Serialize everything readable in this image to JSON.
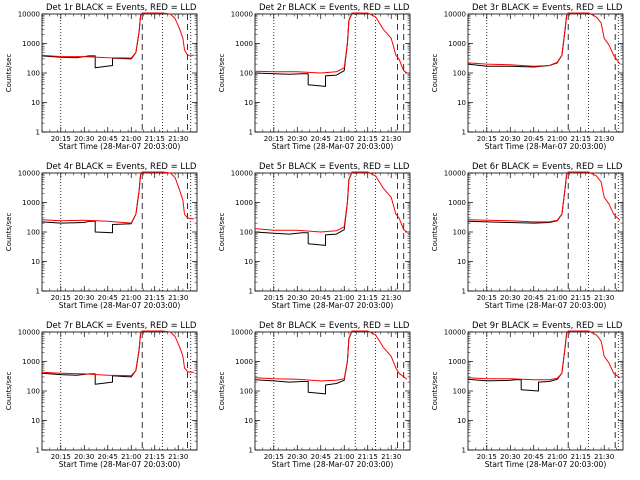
{
  "chart_data": [
    {
      "type": "line",
      "title": "Det 1r BLACK = Events, RED = LLD",
      "xlabel": "Start Time (28-Mar-07 20:03:00)",
      "ylabel": "Counts/sec",
      "xlim": [
        "20:03",
        "21:42"
      ],
      "ylim": [
        1,
        10000
      ],
      "yscale": "log",
      "yticks": [
        "1",
        "10",
        "100",
        "1000",
        "10000"
      ],
      "xticks": [
        "20:15",
        "20:30",
        "20:45",
        "21:00",
        "21:15",
        "21:30"
      ],
      "dotted_lines": [
        "20:15",
        "21:20",
        "21:38"
      ],
      "dashed_lines": [
        "21:07",
        "21:36"
      ],
      "legend": "none",
      "series": [
        {
          "color": "#000000",
          "x": [
            "20:03",
            "20:15",
            "20:25",
            "20:33",
            "20:37",
            "20:37",
            "20:48",
            "20:48",
            "21:00",
            "21:03",
            "21:05",
            "21:06",
            "21:07",
            "21:09"
          ],
          "y": [
            380,
            340,
            330,
            380,
            380,
            150,
            180,
            320,
            300,
            500,
            2500,
            9000,
            11000,
            11000
          ]
        },
        {
          "color": "#ff0000",
          "x": [
            "20:03",
            "20:15",
            "20:30",
            "20:45",
            "21:00",
            "21:03",
            "21:05",
            "21:06",
            "21:07",
            "21:20",
            "21:25",
            "21:28",
            "21:31",
            "21:33",
            "21:34",
            "21:36",
            "21:38",
            "21:40"
          ],
          "y": [
            400,
            360,
            360,
            330,
            320,
            500,
            2500,
            9000,
            11000,
            11000,
            10000,
            7000,
            3000,
            1500,
            600,
            400,
            400,
            400
          ]
        }
      ]
    },
    {
      "type": "line",
      "title": "Det 2r BLACK = Events, RED = LLD",
      "xlabel": "Start Time (28-Mar-07 20:03:00)",
      "ylabel": "Counts/sec",
      "xlim": [
        "20:03",
        "21:42"
      ],
      "ylim": [
        1,
        10000
      ],
      "yscale": "log",
      "yticks": [
        "1",
        "10",
        "100",
        "1000",
        "10000"
      ],
      "xticks": [
        "20:15",
        "20:30",
        "20:45",
        "21:00",
        "21:15",
        "21:30"
      ],
      "dotted_lines": [
        "20:15",
        "21:07",
        "21:20"
      ],
      "dashed_lines": [
        "21:34",
        "21:38"
      ],
      "legend": "none",
      "series": [
        {
          "color": "#000000",
          "x": [
            "20:03",
            "20:15",
            "20:25",
            "20:33",
            "20:37",
            "20:37",
            "20:48",
            "20:48",
            "20:55",
            "21:00",
            "21:02",
            "21:03",
            "21:05",
            "21:06"
          ],
          "y": [
            100,
            95,
            90,
            95,
            95,
            40,
            35,
            80,
            85,
            120,
            1000,
            6000,
            11000,
            11000
          ]
        },
        {
          "color": "#ff0000",
          "x": [
            "20:03",
            "20:15",
            "20:30",
            "20:45",
            "20:55",
            "21:00",
            "21:02",
            "21:03",
            "21:05",
            "21:15",
            "21:20",
            "21:25",
            "21:30",
            "21:33",
            "21:35",
            "21:38",
            "21:40"
          ],
          "y": [
            115,
            110,
            110,
            100,
            110,
            150,
            1000,
            6000,
            11000,
            11000,
            8000,
            3000,
            1500,
            400,
            300,
            120,
            100
          ]
        }
      ]
    },
    {
      "type": "line",
      "title": "Det 3r BLACK = Events, RED = LLD",
      "xlabel": "Start Time (28-Mar-07 20:03:00)",
      "ylabel": "Counts/sec",
      "xlim": [
        "20:03",
        "21:42"
      ],
      "ylim": [
        1,
        10000
      ],
      "yscale": "log",
      "yticks": [
        "1",
        "10",
        "100",
        "1000",
        "10000"
      ],
      "xticks": [
        "20:15",
        "20:30",
        "20:45",
        "21:00",
        "21:15",
        "21:30"
      ],
      "dotted_lines": [
        "20:15",
        "21:20",
        "21:39"
      ],
      "dashed_lines": [
        "21:07",
        "21:37"
      ],
      "legend": "none",
      "series": [
        {
          "color": "#000000",
          "x": [
            "20:03",
            "20:15",
            "20:30",
            "20:45",
            "20:55",
            "21:00",
            "21:03",
            "21:05",
            "21:06",
            "21:07"
          ],
          "y": [
            200,
            170,
            170,
            160,
            180,
            220,
            400,
            3000,
            9000,
            11000
          ]
        },
        {
          "color": "#ff0000",
          "x": [
            "20:03",
            "20:15",
            "20:30",
            "20:45",
            "20:55",
            "21:00",
            "21:03",
            "21:05",
            "21:06",
            "21:07",
            "21:20",
            "21:25",
            "21:28",
            "21:30",
            "21:33",
            "21:36",
            "21:40"
          ],
          "y": [
            220,
            200,
            190,
            170,
            180,
            230,
            400,
            3000,
            9000,
            11000,
            11000,
            8000,
            5000,
            1500,
            900,
            400,
            200
          ]
        }
      ]
    },
    {
      "type": "line",
      "title": "Det 4r BLACK = Events, RED = LLD",
      "xlabel": "Start Time (28-Mar-07 20:03:00)",
      "ylabel": "Counts/sec",
      "xlim": [
        "20:03",
        "21:42"
      ],
      "ylim": [
        1,
        10000
      ],
      "yscale": "log",
      "yticks": [
        "1",
        "10",
        "100",
        "1000",
        "10000"
      ],
      "xticks": [
        "20:15",
        "20:30",
        "20:45",
        "21:00",
        "21:15",
        "21:30"
      ],
      "dotted_lines": [
        "20:15",
        "21:20",
        "21:38"
      ],
      "dashed_lines": [
        "21:07",
        "21:36"
      ],
      "legend": "none",
      "series": [
        {
          "color": "#000000",
          "x": [
            "20:03",
            "20:15",
            "20:30",
            "20:33",
            "20:37",
            "20:37",
            "20:48",
            "20:48",
            "21:00",
            "21:03",
            "21:05",
            "21:06",
            "21:07",
            "21:09"
          ],
          "y": [
            220,
            200,
            210,
            230,
            230,
            100,
            95,
            180,
            190,
            400,
            2500,
            9000,
            11000,
            11000
          ]
        },
        {
          "color": "#ff0000",
          "x": [
            "20:03",
            "20:15",
            "20:30",
            "20:45",
            "21:00",
            "21:03",
            "21:05",
            "21:06",
            "21:07",
            "21:20",
            "21:25",
            "21:28",
            "21:31",
            "21:33",
            "21:34",
            "21:36",
            "21:38",
            "21:40"
          ],
          "y": [
            260,
            240,
            250,
            230,
            200,
            400,
            2500,
            9000,
            11000,
            11000,
            10000,
            7000,
            2500,
            1200,
            400,
            300,
            280,
            280
          ]
        }
      ]
    },
    {
      "type": "line",
      "title": "Det 5r BLACK = Events, RED = LLD",
      "xlabel": "Start Time (28-Mar-07 20:03:00)",
      "ylabel": "Counts/sec",
      "xlim": [
        "20:03",
        "21:42"
      ],
      "ylim": [
        1,
        10000
      ],
      "yscale": "log",
      "yticks": [
        "1",
        "10",
        "100",
        "1000",
        "10000"
      ],
      "xticks": [
        "20:15",
        "20:30",
        "20:45",
        "21:00",
        "21:15",
        "21:30"
      ],
      "dotted_lines": [
        "20:15",
        "21:07",
        "21:20"
      ],
      "dashed_lines": [
        "21:34",
        "21:38"
      ],
      "legend": "none",
      "series": [
        {
          "color": "#000000",
          "x": [
            "20:03",
            "20:15",
            "20:25",
            "20:33",
            "20:37",
            "20:37",
            "20:48",
            "20:48",
            "20:55",
            "21:00",
            "21:02",
            "21:03",
            "21:05",
            "21:06"
          ],
          "y": [
            100,
            90,
            85,
            95,
            95,
            40,
            35,
            80,
            85,
            120,
            1000,
            6000,
            11000,
            11000
          ]
        },
        {
          "color": "#ff0000",
          "x": [
            "20:03",
            "20:15",
            "20:30",
            "20:45",
            "20:55",
            "21:00",
            "21:02",
            "21:03",
            "21:05",
            "21:15",
            "21:20",
            "21:25",
            "21:30",
            "21:33",
            "21:35",
            "21:38",
            "21:40"
          ],
          "y": [
            130,
            115,
            115,
            100,
            110,
            150,
            1000,
            6000,
            11000,
            11000,
            8000,
            3000,
            1500,
            400,
            300,
            120,
            100
          ]
        }
      ]
    },
    {
      "type": "line",
      "title": "Det 6r BLACK = Events, RED = LLD",
      "xlabel": "Start Time (28-Mar-07 20:03:00)",
      "ylabel": "Counts/sec",
      "xlim": [
        "20:03",
        "21:42"
      ],
      "ylim": [
        1,
        10000
      ],
      "yscale": "log",
      "yticks": [
        "1",
        "10",
        "100",
        "1000",
        "10000"
      ],
      "xticks": [
        "20:15",
        "20:30",
        "20:45",
        "21:00",
        "21:15",
        "21:30"
      ],
      "dotted_lines": [
        "20:15",
        "21:20",
        "21:39"
      ],
      "dashed_lines": [
        "21:07",
        "21:37"
      ],
      "legend": "none",
      "series": [
        {
          "color": "#000000",
          "x": [
            "20:03",
            "20:15",
            "20:30",
            "20:45",
            "20:55",
            "21:00",
            "21:03",
            "21:05",
            "21:06",
            "21:07"
          ],
          "y": [
            230,
            220,
            210,
            200,
            210,
            240,
            400,
            3000,
            9000,
            11000
          ]
        },
        {
          "color": "#ff0000",
          "x": [
            "20:03",
            "20:15",
            "20:30",
            "20:45",
            "20:55",
            "21:00",
            "21:03",
            "21:05",
            "21:06",
            "21:07",
            "21:20",
            "21:25",
            "21:28",
            "21:30",
            "21:33",
            "21:36",
            "21:40"
          ],
          "y": [
            260,
            250,
            240,
            220,
            220,
            250,
            400,
            3000,
            9000,
            11000,
            11000,
            8000,
            5000,
            1500,
            900,
            400,
            250
          ]
        }
      ]
    },
    {
      "type": "line",
      "title": "Det 7r BLACK = Events, RED = LLD",
      "xlabel": "Start Time (28-Mar-07 20:03:00)",
      "ylabel": "Counts/sec",
      "xlim": [
        "20:03",
        "21:42"
      ],
      "ylim": [
        1,
        10000
      ],
      "yscale": "log",
      "yticks": [
        "1",
        "10",
        "100",
        "1000",
        "10000"
      ],
      "xticks": [
        "20:15",
        "20:30",
        "20:45",
        "21:00",
        "21:15",
        "21:30"
      ],
      "dotted_lines": [
        "20:15",
        "21:20",
        "21:38"
      ],
      "dashed_lines": [
        "21:07",
        "21:36"
      ],
      "legend": "none",
      "series": [
        {
          "color": "#000000",
          "x": [
            "20:03",
            "20:15",
            "20:25",
            "20:33",
            "20:37",
            "20:37",
            "20:48",
            "20:48",
            "21:00",
            "21:03",
            "21:05",
            "21:06",
            "21:07",
            "21:09"
          ],
          "y": [
            400,
            360,
            340,
            380,
            380,
            170,
            200,
            330,
            300,
            500,
            2500,
            9000,
            11000,
            11000
          ]
        },
        {
          "color": "#ff0000",
          "x": [
            "20:03",
            "20:15",
            "20:30",
            "20:45",
            "21:00",
            "21:03",
            "21:05",
            "21:06",
            "21:07",
            "21:20",
            "21:25",
            "21:28",
            "21:31",
            "21:33",
            "21:34",
            "21:36",
            "21:38",
            "21:40"
          ],
          "y": [
            430,
            400,
            380,
            340,
            330,
            500,
            2500,
            9000,
            11000,
            11000,
            10000,
            7000,
            3000,
            1500,
            600,
            450,
            430,
            430
          ]
        }
      ]
    },
    {
      "type": "line",
      "title": "Det 8r BLACK = Events, RED = LLD",
      "xlabel": "Start Time (28-Mar-07 20:03:00)",
      "ylabel": "Counts/sec",
      "xlim": [
        "20:03",
        "21:42"
      ],
      "ylim": [
        1,
        10000
      ],
      "yscale": "log",
      "yticks": [
        "1",
        "10",
        "100",
        "1000",
        "10000"
      ],
      "xticks": [
        "20:15",
        "20:30",
        "20:45",
        "21:00",
        "21:15",
        "21:30"
      ],
      "dotted_lines": [
        "20:15",
        "21:07",
        "21:20"
      ],
      "dashed_lines": [
        "21:34",
        "21:38"
      ],
      "legend": "none",
      "series": [
        {
          "color": "#000000",
          "x": [
            "20:03",
            "20:15",
            "20:25",
            "20:33",
            "20:37",
            "20:37",
            "20:48",
            "20:48",
            "20:55",
            "21:00",
            "21:02",
            "21:03",
            "21:05",
            "21:06"
          ],
          "y": [
            240,
            220,
            200,
            210,
            210,
            90,
            80,
            160,
            180,
            230,
            1000,
            6000,
            11000,
            11000
          ]
        },
        {
          "color": "#ff0000",
          "x": [
            "20:03",
            "20:15",
            "20:30",
            "20:45",
            "20:55",
            "21:00",
            "21:02",
            "21:03",
            "21:05",
            "21:15",
            "21:20",
            "21:25",
            "21:30",
            "21:33",
            "21:35",
            "21:38",
            "21:40"
          ],
          "y": [
            280,
            260,
            250,
            220,
            230,
            260,
            1000,
            6000,
            11000,
            11000,
            8000,
            3000,
            1500,
            600,
            400,
            300,
            250
          ]
        }
      ]
    },
    {
      "type": "line",
      "title": "Det 9r BLACK = Events, RED = LLD",
      "xlabel": "Start Time (28-Mar-07 20:03:00)",
      "ylabel": "Counts/sec",
      "xlim": [
        "20:03",
        "21:42"
      ],
      "ylim": [
        1,
        10000
      ],
      "yscale": "log",
      "yticks": [
        "1",
        "10",
        "100",
        "1000",
        "10000"
      ],
      "xticks": [
        "20:15",
        "20:30",
        "20:45",
        "21:00",
        "21:15",
        "21:30"
      ],
      "dotted_lines": [
        "20:15",
        "21:20",
        "21:39"
      ],
      "dashed_lines": [
        "21:07",
        "21:37"
      ],
      "legend": "none",
      "series": [
        {
          "color": "#000000",
          "x": [
            "20:03",
            "20:15",
            "20:30",
            "20:33",
            "20:37",
            "20:37",
            "20:48",
            "20:48",
            "20:55",
            "21:00",
            "21:03",
            "21:05",
            "21:06",
            "21:07"
          ],
          "y": [
            250,
            220,
            230,
            240,
            240,
            110,
            100,
            200,
            210,
            250,
            400,
            3000,
            9000,
            11000
          ]
        },
        {
          "color": "#ff0000",
          "x": [
            "20:03",
            "20:15",
            "20:30",
            "20:45",
            "20:55",
            "21:00",
            "21:03",
            "21:05",
            "21:06",
            "21:07",
            "21:20",
            "21:25",
            "21:28",
            "21:30",
            "21:33",
            "21:36",
            "21:40"
          ],
          "y": [
            280,
            260,
            260,
            240,
            240,
            270,
            400,
            3000,
            9000,
            11000,
            11000,
            8000,
            5000,
            1500,
            900,
            400,
            280
          ]
        }
      ]
    }
  ]
}
